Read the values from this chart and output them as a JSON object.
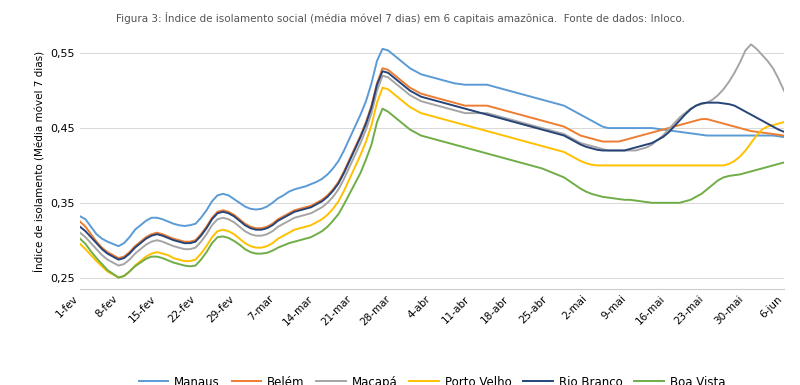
{
  "title": "Figura 3: Índice de isolamento social (média móvel 7 dias) em 6 capitais amazônica.  Fonte de dados: Inloco.",
  "ylabel": "Índice de isolamento (Média móvel 7 dias)",
  "ylim": [
    0.235,
    0.575
  ],
  "yticks": [
    0.25,
    0.35,
    0.45,
    0.55
  ],
  "xtick_labels": [
    "1-fev",
    "8-fev",
    "15-fev",
    "22-fev",
    "29-fev",
    "7-mar",
    "14-mar",
    "21-mar",
    "28-mar",
    "4-abr",
    "11-abr",
    "18-abr",
    "25-abr",
    "2-mai",
    "9-mai",
    "16-mai",
    "23-mai",
    "30-mai",
    "6-jun"
  ],
  "colors": {
    "Manaus": "#5B9BD5",
    "Belém": "#ED7D31",
    "Macapá": "#A5A5A5",
    "Porto Velho": "#FFC000",
    "Rio Branco": "#264478",
    "Boa Vista": "#70AD47"
  },
  "series": {
    "Manaus": [
      0.332,
      0.328,
      0.318,
      0.308,
      0.302,
      0.298,
      0.295,
      0.292,
      0.296,
      0.304,
      0.314,
      0.32,
      0.326,
      0.33,
      0.33,
      0.328,
      0.325,
      0.322,
      0.32,
      0.319,
      0.32,
      0.322,
      0.33,
      0.34,
      0.352,
      0.36,
      0.362,
      0.36,
      0.355,
      0.35,
      0.345,
      0.342,
      0.341,
      0.342,
      0.345,
      0.35,
      0.356,
      0.36,
      0.365,
      0.368,
      0.37,
      0.372,
      0.375,
      0.378,
      0.382,
      0.388,
      0.396,
      0.406,
      0.42,
      0.436,
      0.452,
      0.468,
      0.486,
      0.51,
      0.54,
      0.556,
      0.554,
      0.548,
      0.542,
      0.536,
      0.53,
      0.526,
      0.522,
      0.52,
      0.518,
      0.516,
      0.514,
      0.512,
      0.51,
      0.509,
      0.508,
      0.508,
      0.508,
      0.508,
      0.508,
      0.506,
      0.504,
      0.502,
      0.5,
      0.498,
      0.496,
      0.494,
      0.492,
      0.49,
      0.488,
      0.486,
      0.484,
      0.482,
      0.48,
      0.476,
      0.472,
      0.468,
      0.464,
      0.46,
      0.456,
      0.452,
      0.45,
      0.45,
      0.45,
      0.45,
      0.45,
      0.45,
      0.45,
      0.45,
      0.45,
      0.449,
      0.448,
      0.447,
      0.446,
      0.445,
      0.444,
      0.443,
      0.442,
      0.441,
      0.44,
      0.44,
      0.44,
      0.44,
      0.44,
      0.44,
      0.44,
      0.44,
      0.44,
      0.44,
      0.44,
      0.44,
      0.44,
      0.439,
      0.438
    ],
    "Belém": [
      0.325,
      0.318,
      0.308,
      0.298,
      0.29,
      0.284,
      0.28,
      0.276,
      0.278,
      0.284,
      0.292,
      0.298,
      0.304,
      0.308,
      0.31,
      0.308,
      0.305,
      0.302,
      0.3,
      0.298,
      0.298,
      0.3,
      0.308,
      0.318,
      0.33,
      0.338,
      0.34,
      0.338,
      0.334,
      0.328,
      0.322,
      0.318,
      0.316,
      0.316,
      0.318,
      0.322,
      0.328,
      0.332,
      0.336,
      0.34,
      0.342,
      0.344,
      0.346,
      0.35,
      0.354,
      0.36,
      0.368,
      0.378,
      0.392,
      0.408,
      0.424,
      0.44,
      0.458,
      0.48,
      0.51,
      0.53,
      0.528,
      0.522,
      0.516,
      0.51,
      0.504,
      0.5,
      0.496,
      0.494,
      0.492,
      0.49,
      0.488,
      0.486,
      0.484,
      0.482,
      0.48,
      0.48,
      0.48,
      0.48,
      0.48,
      0.478,
      0.476,
      0.474,
      0.472,
      0.47,
      0.468,
      0.466,
      0.464,
      0.462,
      0.46,
      0.458,
      0.456,
      0.454,
      0.452,
      0.448,
      0.444,
      0.44,
      0.438,
      0.436,
      0.434,
      0.432,
      0.432,
      0.432,
      0.432,
      0.434,
      0.436,
      0.438,
      0.44,
      0.442,
      0.444,
      0.446,
      0.448,
      0.45,
      0.452,
      0.454,
      0.456,
      0.458,
      0.46,
      0.462,
      0.462,
      0.46,
      0.458,
      0.456,
      0.454,
      0.452,
      0.45,
      0.448,
      0.446,
      0.445,
      0.444,
      0.443,
      0.442,
      0.441,
      0.44
    ],
    "Macapá": [
      0.31,
      0.304,
      0.296,
      0.288,
      0.28,
      0.274,
      0.27,
      0.266,
      0.268,
      0.274,
      0.282,
      0.288,
      0.294,
      0.298,
      0.3,
      0.298,
      0.295,
      0.292,
      0.29,
      0.288,
      0.288,
      0.29,
      0.298,
      0.308,
      0.32,
      0.328,
      0.33,
      0.328,
      0.324,
      0.318,
      0.312,
      0.308,
      0.306,
      0.306,
      0.308,
      0.312,
      0.318,
      0.322,
      0.326,
      0.33,
      0.332,
      0.334,
      0.336,
      0.34,
      0.344,
      0.35,
      0.358,
      0.368,
      0.382,
      0.398,
      0.414,
      0.43,
      0.448,
      0.47,
      0.5,
      0.52,
      0.518,
      0.512,
      0.506,
      0.5,
      0.494,
      0.49,
      0.486,
      0.484,
      0.482,
      0.48,
      0.478,
      0.476,
      0.474,
      0.472,
      0.47,
      0.47,
      0.47,
      0.47,
      0.47,
      0.468,
      0.466,
      0.464,
      0.462,
      0.46,
      0.458,
      0.456,
      0.454,
      0.452,
      0.45,
      0.448,
      0.446,
      0.444,
      0.442,
      0.438,
      0.434,
      0.43,
      0.428,
      0.426,
      0.424,
      0.422,
      0.42,
      0.42,
      0.42,
      0.42,
      0.42,
      0.42,
      0.422,
      0.424,
      0.428,
      0.434,
      0.44,
      0.448,
      0.456,
      0.464,
      0.47,
      0.476,
      0.48,
      0.482,
      0.484,
      0.488,
      0.494,
      0.502,
      0.512,
      0.524,
      0.538,
      0.554,
      0.562,
      0.556,
      0.548,
      0.54,
      0.53,
      0.516,
      0.5
    ],
    "Porto Velho": [
      0.295,
      0.288,
      0.28,
      0.272,
      0.265,
      0.258,
      0.254,
      0.25,
      0.252,
      0.258,
      0.266,
      0.272,
      0.278,
      0.282,
      0.284,
      0.282,
      0.28,
      0.276,
      0.274,
      0.272,
      0.272,
      0.274,
      0.282,
      0.292,
      0.304,
      0.312,
      0.314,
      0.312,
      0.308,
      0.302,
      0.296,
      0.292,
      0.29,
      0.29,
      0.292,
      0.296,
      0.302,
      0.306,
      0.31,
      0.314,
      0.316,
      0.318,
      0.32,
      0.324,
      0.328,
      0.334,
      0.342,
      0.352,
      0.366,
      0.382,
      0.398,
      0.414,
      0.432,
      0.454,
      0.484,
      0.504,
      0.502,
      0.496,
      0.49,
      0.484,
      0.478,
      0.474,
      0.47,
      0.468,
      0.466,
      0.464,
      0.462,
      0.46,
      0.458,
      0.456,
      0.454,
      0.452,
      0.45,
      0.448,
      0.446,
      0.444,
      0.442,
      0.44,
      0.438,
      0.436,
      0.434,
      0.432,
      0.43,
      0.428,
      0.426,
      0.424,
      0.422,
      0.42,
      0.418,
      0.414,
      0.41,
      0.406,
      0.403,
      0.401,
      0.4,
      0.4,
      0.4,
      0.4,
      0.4,
      0.4,
      0.4,
      0.4,
      0.4,
      0.4,
      0.4,
      0.4,
      0.4,
      0.4,
      0.4,
      0.4,
      0.4,
      0.4,
      0.4,
      0.4,
      0.4,
      0.4,
      0.4,
      0.4,
      0.402,
      0.406,
      0.412,
      0.42,
      0.43,
      0.44,
      0.448,
      0.452,
      0.454,
      0.456,
      0.458
    ],
    "Rio Branco": [
      0.318,
      0.312,
      0.304,
      0.296,
      0.288,
      0.282,
      0.278,
      0.274,
      0.276,
      0.282,
      0.29,
      0.296,
      0.302,
      0.306,
      0.308,
      0.306,
      0.303,
      0.3,
      0.298,
      0.296,
      0.296,
      0.298,
      0.306,
      0.316,
      0.328,
      0.336,
      0.338,
      0.336,
      0.332,
      0.326,
      0.32,
      0.316,
      0.314,
      0.314,
      0.316,
      0.32,
      0.326,
      0.33,
      0.334,
      0.338,
      0.34,
      0.342,
      0.344,
      0.348,
      0.352,
      0.358,
      0.366,
      0.376,
      0.39,
      0.406,
      0.422,
      0.438,
      0.456,
      0.478,
      0.508,
      0.526,
      0.524,
      0.518,
      0.512,
      0.506,
      0.5,
      0.496,
      0.492,
      0.49,
      0.488,
      0.486,
      0.484,
      0.482,
      0.48,
      0.478,
      0.476,
      0.474,
      0.472,
      0.47,
      0.468,
      0.466,
      0.464,
      0.462,
      0.46,
      0.458,
      0.456,
      0.454,
      0.452,
      0.45,
      0.448,
      0.446,
      0.444,
      0.442,
      0.44,
      0.436,
      0.432,
      0.428,
      0.425,
      0.423,
      0.421,
      0.42,
      0.42,
      0.42,
      0.42,
      0.42,
      0.422,
      0.424,
      0.426,
      0.428,
      0.43,
      0.434,
      0.438,
      0.444,
      0.452,
      0.46,
      0.468,
      0.475,
      0.48,
      0.483,
      0.484,
      0.484,
      0.484,
      0.483,
      0.482,
      0.48,
      0.476,
      0.472,
      0.468,
      0.464,
      0.46,
      0.456,
      0.452,
      0.448,
      0.445
    ],
    "Boa Vista": [
      0.302,
      0.295,
      0.285,
      0.276,
      0.268,
      0.26,
      0.255,
      0.25,
      0.252,
      0.258,
      0.265,
      0.27,
      0.275,
      0.278,
      0.278,
      0.276,
      0.273,
      0.27,
      0.268,
      0.266,
      0.265,
      0.266,
      0.274,
      0.284,
      0.296,
      0.304,
      0.305,
      0.303,
      0.299,
      0.294,
      0.288,
      0.284,
      0.282,
      0.282,
      0.283,
      0.286,
      0.29,
      0.293,
      0.296,
      0.298,
      0.3,
      0.302,
      0.304,
      0.308,
      0.312,
      0.318,
      0.326,
      0.335,
      0.348,
      0.362,
      0.376,
      0.39,
      0.408,
      0.428,
      0.458,
      0.476,
      0.472,
      0.466,
      0.46,
      0.454,
      0.448,
      0.444,
      0.44,
      0.438,
      0.436,
      0.434,
      0.432,
      0.43,
      0.428,
      0.426,
      0.424,
      0.422,
      0.42,
      0.418,
      0.416,
      0.414,
      0.412,
      0.41,
      0.408,
      0.406,
      0.404,
      0.402,
      0.4,
      0.398,
      0.396,
      0.393,
      0.39,
      0.387,
      0.384,
      0.379,
      0.374,
      0.369,
      0.365,
      0.362,
      0.36,
      0.358,
      0.357,
      0.356,
      0.355,
      0.354,
      0.354,
      0.353,
      0.352,
      0.351,
      0.35,
      0.35,
      0.35,
      0.35,
      0.35,
      0.35,
      0.352,
      0.354,
      0.358,
      0.362,
      0.368,
      0.374,
      0.38,
      0.384,
      0.386,
      0.387,
      0.388,
      0.39,
      0.392,
      0.394,
      0.396,
      0.398,
      0.4,
      0.402,
      0.404
    ]
  }
}
